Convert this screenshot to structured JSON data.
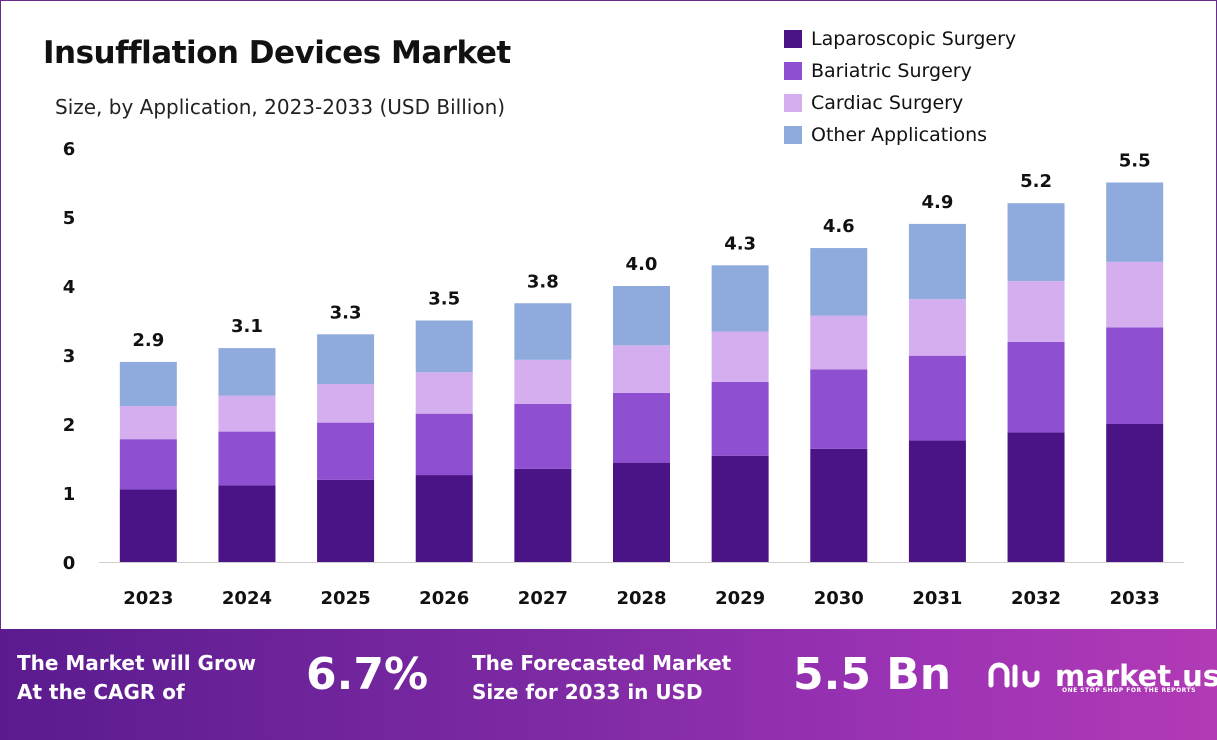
{
  "title": "Insufflation Devices Market",
  "subtitle": "Size, by Application, 2023-2033 (USD Billion)",
  "legend": [
    {
      "label": "Laparoscopic Surgery",
      "color": "#4a1486"
    },
    {
      "label": "Bariatric Surgery",
      "color": "#8e4fd0"
    },
    {
      "label": "Cardiac Surgery",
      "color": "#d5aef0"
    },
    {
      "label": "Other Applications",
      "color": "#8faadc"
    }
  ],
  "chart_data": {
    "type": "bar",
    "stacked": true,
    "categories": [
      "2023",
      "2024",
      "2025",
      "2026",
      "2027",
      "2028",
      "2029",
      "2030",
      "2031",
      "2032",
      "2033"
    ],
    "series": [
      {
        "name": "Laparoscopic Surgery",
        "color": "#4a1486",
        "values": [
          1.05,
          1.11,
          1.19,
          1.26,
          1.35,
          1.44,
          1.54,
          1.64,
          1.76,
          1.88,
          2.0
        ]
      },
      {
        "name": "Bariatric Surgery",
        "color": "#8e4fd0",
        "values": [
          0.73,
          0.78,
          0.83,
          0.89,
          0.94,
          1.01,
          1.07,
          1.15,
          1.23,
          1.31,
          1.4
        ]
      },
      {
        "name": "Cardiac Surgery",
        "color": "#d5aef0",
        "values": [
          0.48,
          0.52,
          0.56,
          0.6,
          0.64,
          0.69,
          0.73,
          0.78,
          0.82,
          0.88,
          0.95
        ]
      },
      {
        "name": "Other Applications",
        "color": "#8faadc",
        "values": [
          0.64,
          0.69,
          0.72,
          0.75,
          0.82,
          0.86,
          0.96,
          0.98,
          1.09,
          1.13,
          1.15
        ]
      }
    ],
    "totals": [
      "2.9",
      "3.1",
      "3.3",
      "3.5",
      "3.8",
      "4.0",
      "4.3",
      "4.6",
      "4.9",
      "5.2",
      "5.5"
    ],
    "ylim": [
      0,
      6
    ],
    "yticks": [
      "0",
      "1",
      "2",
      "3",
      "4",
      "5",
      "6"
    ],
    "grid": false,
    "legend_position": "top-right"
  },
  "footer": {
    "cagr_text_line1": "The Market will Grow",
    "cagr_text_line2": "At the CAGR of",
    "cagr_value": "6.7%",
    "forecast_text_line1": "The Forecasted Market",
    "forecast_text_line2": "Size for 2033 in USD",
    "forecast_value": "5.5 Bn",
    "brand_name": "market.us",
    "brand_tagline": "ONE STOP SHOP FOR THE REPORTS"
  }
}
